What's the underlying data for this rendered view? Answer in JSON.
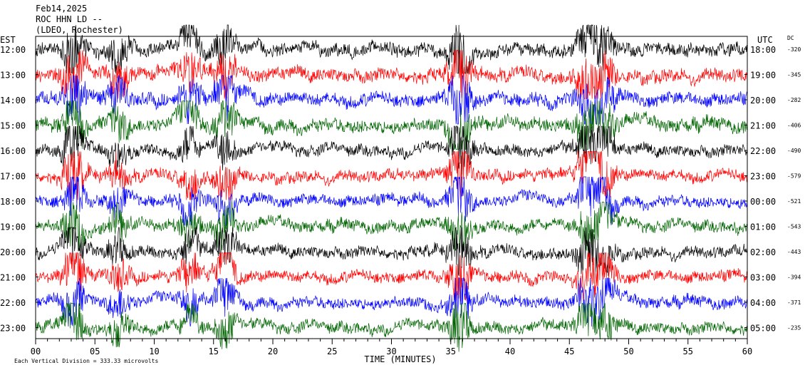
{
  "header": {
    "date": "Feb14,2025",
    "station": "ROC HHN LD --",
    "network": "(LDEO, Rochester)"
  },
  "chart_data": {
    "type": "line",
    "title": "Feb14,2025 ROC HHN LD -- (LDEO, Rochester)",
    "xlabel": "TIME (MINUTES)",
    "x_ticks": [
      "00",
      "05",
      "10",
      "15",
      "20",
      "25",
      "30",
      "35",
      "40",
      "45",
      "50",
      "55",
      "60"
    ],
    "xlim": [
      0,
      60
    ],
    "left_axis_label": "EST",
    "right_axis_label": "UTC",
    "dc_label": "DC",
    "trace_colors": [
      "#000000",
      "#ff0000",
      "#0000ff",
      "#006400"
    ],
    "series": [
      {
        "est": "12:00",
        "utc": "18:00",
        "dc": "-320"
      },
      {
        "est": "13:00",
        "utc": "19:00",
        "dc": "-345"
      },
      {
        "est": "14:00",
        "utc": "20:00",
        "dc": "-282"
      },
      {
        "est": "15:00",
        "utc": "21:00",
        "dc": "-406"
      },
      {
        "est": "16:00",
        "utc": "22:00",
        "dc": "-490"
      },
      {
        "est": "17:00",
        "utc": "23:00",
        "dc": "-579"
      },
      {
        "est": "18:00",
        "utc": "00:00",
        "dc": "-521"
      },
      {
        "est": "19:00",
        "utc": "01:00",
        "dc": "-543"
      },
      {
        "est": "20:00",
        "utc": "02:00",
        "dc": "-443"
      },
      {
        "est": "21:00",
        "utc": "03:00",
        "dc": "-394"
      },
      {
        "est": "22:00",
        "utc": "04:00",
        "dc": "-371"
      },
      {
        "est": "23:00",
        "utc": "05:00",
        "dc": "-235"
      }
    ]
  },
  "footer": {
    "scale_note": "Each Vertical Division =  333.33 microvolts"
  }
}
